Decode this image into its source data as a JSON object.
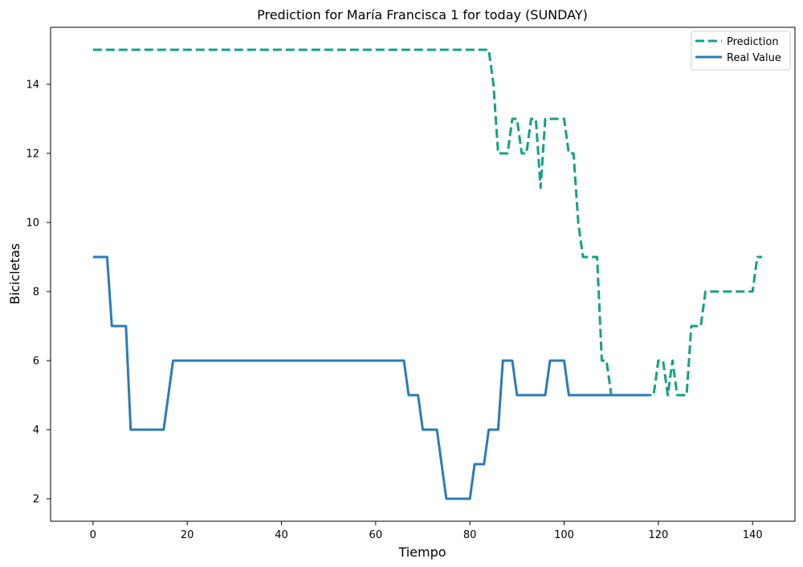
{
  "chart_data": {
    "type": "line",
    "title": "Prediction for María Francisca 1 for today (SUNDAY)",
    "xlabel": "Tiempo",
    "ylabel": "Bicicletas",
    "xlim": [
      -9,
      149
    ],
    "ylim": [
      1.35,
      15.65
    ],
    "xticks": [
      0,
      20,
      40,
      60,
      80,
      100,
      120,
      140
    ],
    "yticks": [
      2,
      4,
      6,
      8,
      10,
      12,
      14
    ],
    "grid": false,
    "legend_position": "top-right",
    "series": [
      {
        "name": "Prediction",
        "color": "#16a085",
        "style": "dashed",
        "points": [
          [
            0,
            15
          ],
          [
            84,
            15
          ],
          [
            85,
            14
          ],
          [
            86,
            12
          ],
          [
            88,
            12
          ],
          [
            89,
            13
          ],
          [
            90,
            13
          ],
          [
            91,
            12
          ],
          [
            92,
            12
          ],
          [
            93,
            13
          ],
          [
            94,
            13
          ],
          [
            95,
            11
          ],
          [
            96,
            13
          ],
          [
            100,
            13
          ],
          [
            101,
            12
          ],
          [
            102,
            12
          ],
          [
            103,
            10
          ],
          [
            104,
            9
          ],
          [
            107,
            9
          ],
          [
            108,
            6
          ],
          [
            109,
            6
          ],
          [
            110,
            5
          ],
          [
            119,
            5
          ],
          [
            120,
            6
          ],
          [
            121,
            6
          ],
          [
            122,
            5
          ],
          [
            123,
            6
          ],
          [
            124,
            5
          ],
          [
            126,
            5
          ],
          [
            127,
            7
          ],
          [
            129,
            7
          ],
          [
            130,
            8
          ],
          [
            140,
            8
          ],
          [
            141,
            9
          ],
          [
            142,
            9
          ]
        ]
      },
      {
        "name": "Real Value",
        "color": "#2c7bb6",
        "style": "solid",
        "points": [
          [
            0,
            9
          ],
          [
            3,
            9
          ],
          [
            4,
            7
          ],
          [
            7,
            7
          ],
          [
            8,
            4
          ],
          [
            15,
            4
          ],
          [
            17,
            6
          ],
          [
            66,
            6
          ],
          [
            67,
            5
          ],
          [
            69,
            5
          ],
          [
            70,
            4
          ],
          [
            73,
            4
          ],
          [
            75,
            2
          ],
          [
            80,
            2
          ],
          [
            81,
            3
          ],
          [
            83,
            3
          ],
          [
            84,
            4
          ],
          [
            86,
            4
          ],
          [
            87,
            6
          ],
          [
            89,
            6
          ],
          [
            90,
            5
          ],
          [
            96,
            5
          ],
          [
            97,
            6
          ],
          [
            100,
            6
          ],
          [
            101,
            5
          ],
          [
            118,
            5
          ]
        ]
      }
    ]
  }
}
